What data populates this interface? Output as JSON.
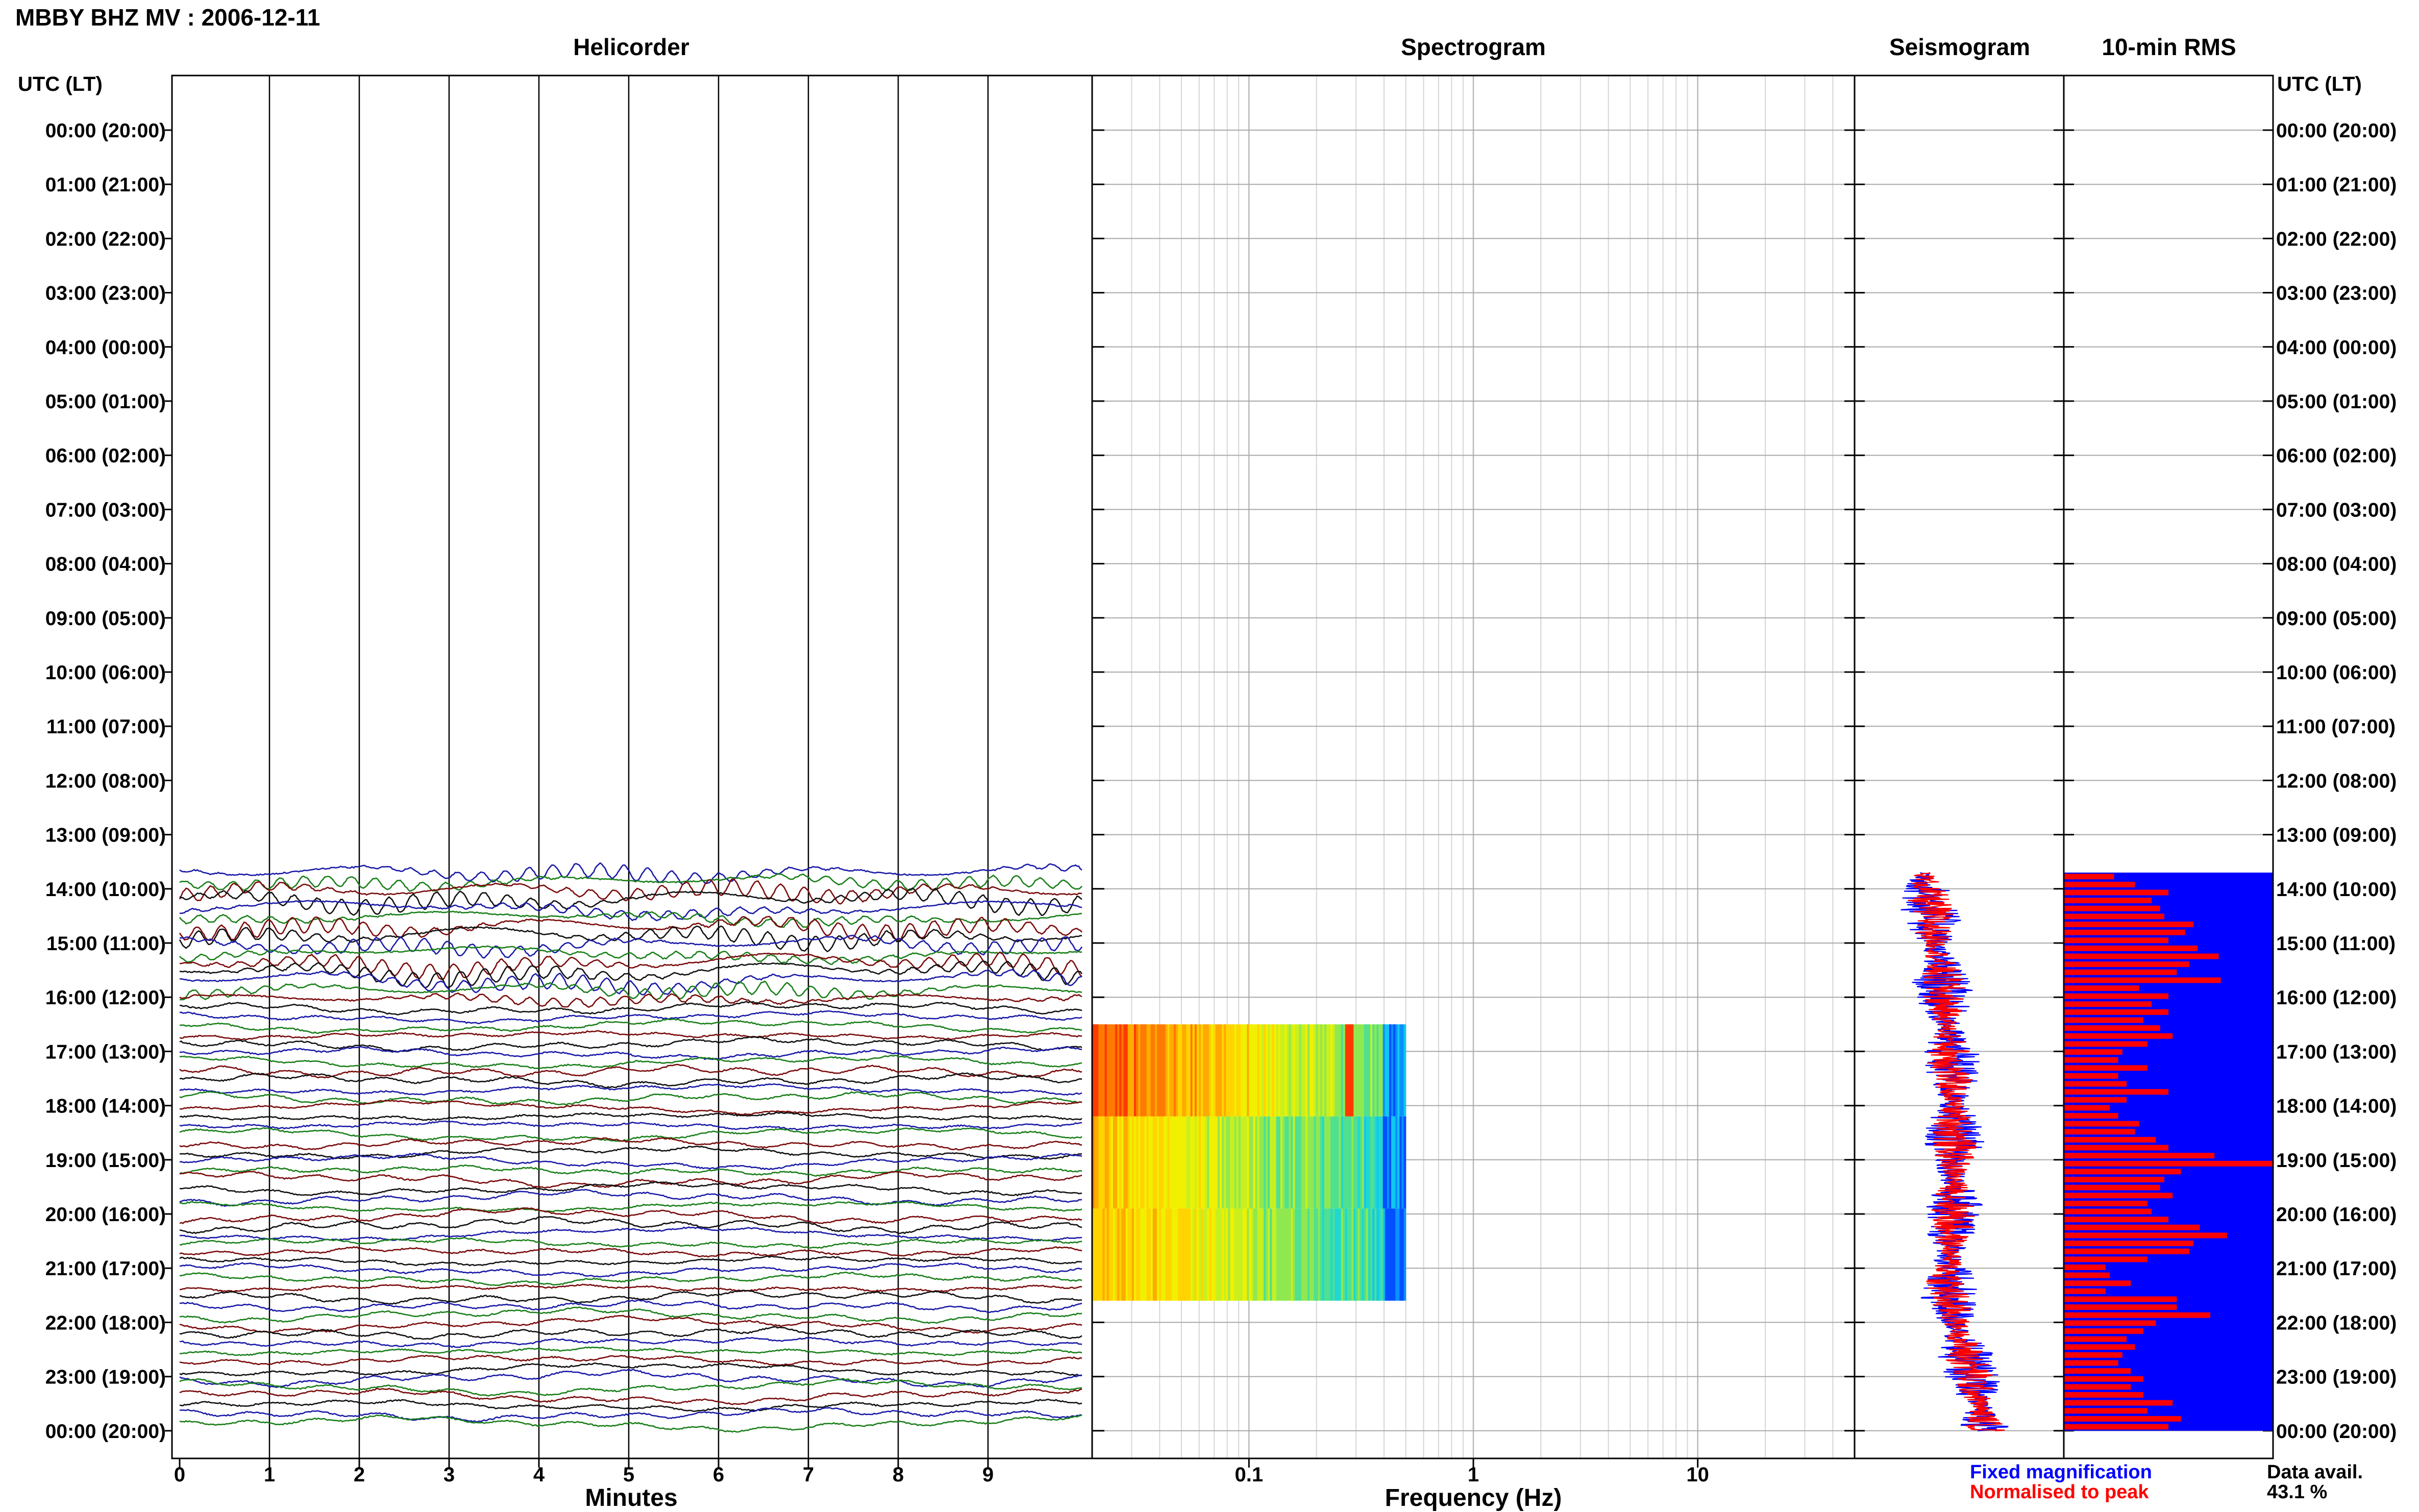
{
  "title": "MBBY BHZ MV : 2006-12-11",
  "panels": {
    "helicorder": "Helicorder",
    "spectrogram": "Spectrogram",
    "seismogram": "Seismogram",
    "rms": "10-min RMS"
  },
  "axis": {
    "left_header": "UTC (LT)",
    "right_header": "UTC (LT)",
    "minutes_label": "Minutes",
    "frequency_label": "Frequency (Hz)",
    "minute_ticks": [
      "0",
      "1",
      "2",
      "3",
      "4",
      "5",
      "6",
      "7",
      "8",
      "9"
    ],
    "frequency_ticks": [
      "0.1",
      "1",
      "10"
    ]
  },
  "time_labels": [
    "00:00 (20:00)",
    "01:00 (21:00)",
    "02:00 (22:00)",
    "03:00 (23:00)",
    "04:00 (00:00)",
    "05:00 (01:00)",
    "06:00 (02:00)",
    "07:00 (03:00)",
    "08:00 (04:00)",
    "09:00 (05:00)",
    "10:00 (06:00)",
    "11:00 (07:00)",
    "12:00 (08:00)",
    "13:00 (09:00)",
    "14:00 (10:00)",
    "15:00 (11:00)",
    "16:00 (12:00)",
    "17:00 (13:00)",
    "18:00 (14:00)",
    "19:00 (15:00)",
    "20:00 (16:00)",
    "21:00 (17:00)",
    "22:00 (18:00)",
    "23:00 (19:00)",
    "00:00 (20:00)"
  ],
  "legend": {
    "fixed": "Fixed magnification",
    "normalised": "Normalised to peak",
    "data_avail_label": "Data avail.",
    "data_avail_value": "43.1 %"
  },
  "colors": {
    "trace_cycle": [
      "#1a1aa8",
      "#1a7f1a",
      "#7a0c0c",
      "#111111"
    ],
    "fixed": "#0000ff",
    "normalised": "#ff0000",
    "rms_bg": "#0000ff",
    "rms_bar": "#ff0000"
  },
  "chart_data": {
    "type": "helicorder",
    "data_start_hour": 13.7,
    "helicorder_minutes": [
      0,
      10
    ],
    "spectrogram": {
      "freq_range_hz": [
        0.02,
        50
      ],
      "freq_data_max_hz": 0.5,
      "blocks": [
        {
          "start_hour": 16.5,
          "end_hour": 18.2
        },
        {
          "start_hour": 18.2,
          "end_hour": 19.9
        },
        {
          "start_hour": 19.9,
          "end_hour": 21.6
        }
      ]
    },
    "rms_relative": [
      0.24,
      0.34,
      0.5,
      0.42,
      0.46,
      0.48,
      0.62,
      0.58,
      0.5,
      0.64,
      0.74,
      0.6,
      0.54,
      0.75,
      0.36,
      0.5,
      0.42,
      0.5,
      0.38,
      0.46,
      0.52,
      0.4,
      0.28,
      0.26,
      0.4,
      0.26,
      0.3,
      0.5,
      0.3,
      0.22,
      0.26,
      0.36,
      0.34,
      0.44,
      0.5,
      0.72,
      1.0,
      0.56,
      0.48,
      0.46,
      0.52,
      0.4,
      0.42,
      0.5,
      0.65,
      0.78,
      0.62,
      0.6,
      0.4,
      0.2,
      0.22,
      0.32,
      0.2,
      0.54,
      0.54,
      0.7,
      0.44,
      0.38,
      0.3,
      0.34,
      0.28,
      0.26,
      0.32,
      0.38,
      0.32,
      0.38,
      0.52,
      0.4,
      0.56,
      0.5
    ]
  }
}
